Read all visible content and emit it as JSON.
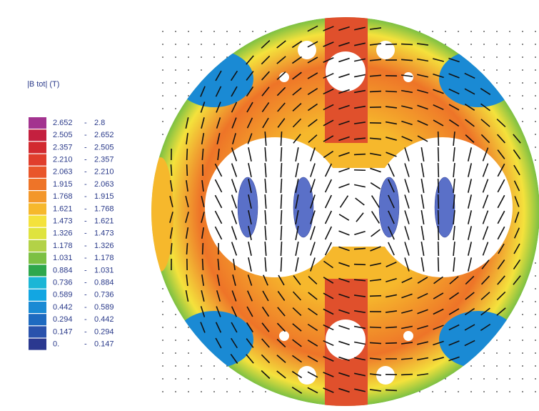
{
  "legend": {
    "title": "|B tot| (T)",
    "separator": "-",
    "rows": [
      {
        "from": "2.652",
        "to": "2.8",
        "color": "#a3338f"
      },
      {
        "from": "2.505",
        "to": "2.652",
        "color": "#c4203f"
      },
      {
        "from": "2.357",
        "to": "2.505",
        "color": "#d22a30"
      },
      {
        "from": "2.210",
        "to": "2.357",
        "color": "#e03e2c"
      },
      {
        "from": "2.063",
        "to": "2.210",
        "color": "#e9562a"
      },
      {
        "from": "1.915",
        "to": "2.063",
        "color": "#ee7428"
      },
      {
        "from": "1.768",
        "to": "1.915",
        "color": "#f3972a"
      },
      {
        "from": "1.621",
        "to": "1.768",
        "color": "#f6b82c"
      },
      {
        "from": "1.473",
        "to": "1.621",
        "color": "#f4e23c"
      },
      {
        "from": "1.326",
        "to": "1.473",
        "color": "#dfe33e"
      },
      {
        "from": "1.178",
        "to": "1.326",
        "color": "#b3d247"
      },
      {
        "from": "1.031",
        "to": "1.178",
        "color": "#7cc043"
      },
      {
        "from": "0.884",
        "to": "1.031",
        "color": "#2ea74c"
      },
      {
        "from": "0.736",
        "to": "0.884",
        "color": "#1bb6d6"
      },
      {
        "from": "0.589",
        "to": "0.736",
        "color": "#12a6e2"
      },
      {
        "from": "0.442",
        "to": "0.589",
        "color": "#1a8ad4"
      },
      {
        "from": "0.294",
        "to": "0.442",
        "color": "#1e6ac0"
      },
      {
        "from": "0.147",
        "to": "0.294",
        "color": "#2a52ac"
      },
      {
        "from": "0.",
        "to": "0.147",
        "color": "#2b3990"
      }
    ]
  }
}
